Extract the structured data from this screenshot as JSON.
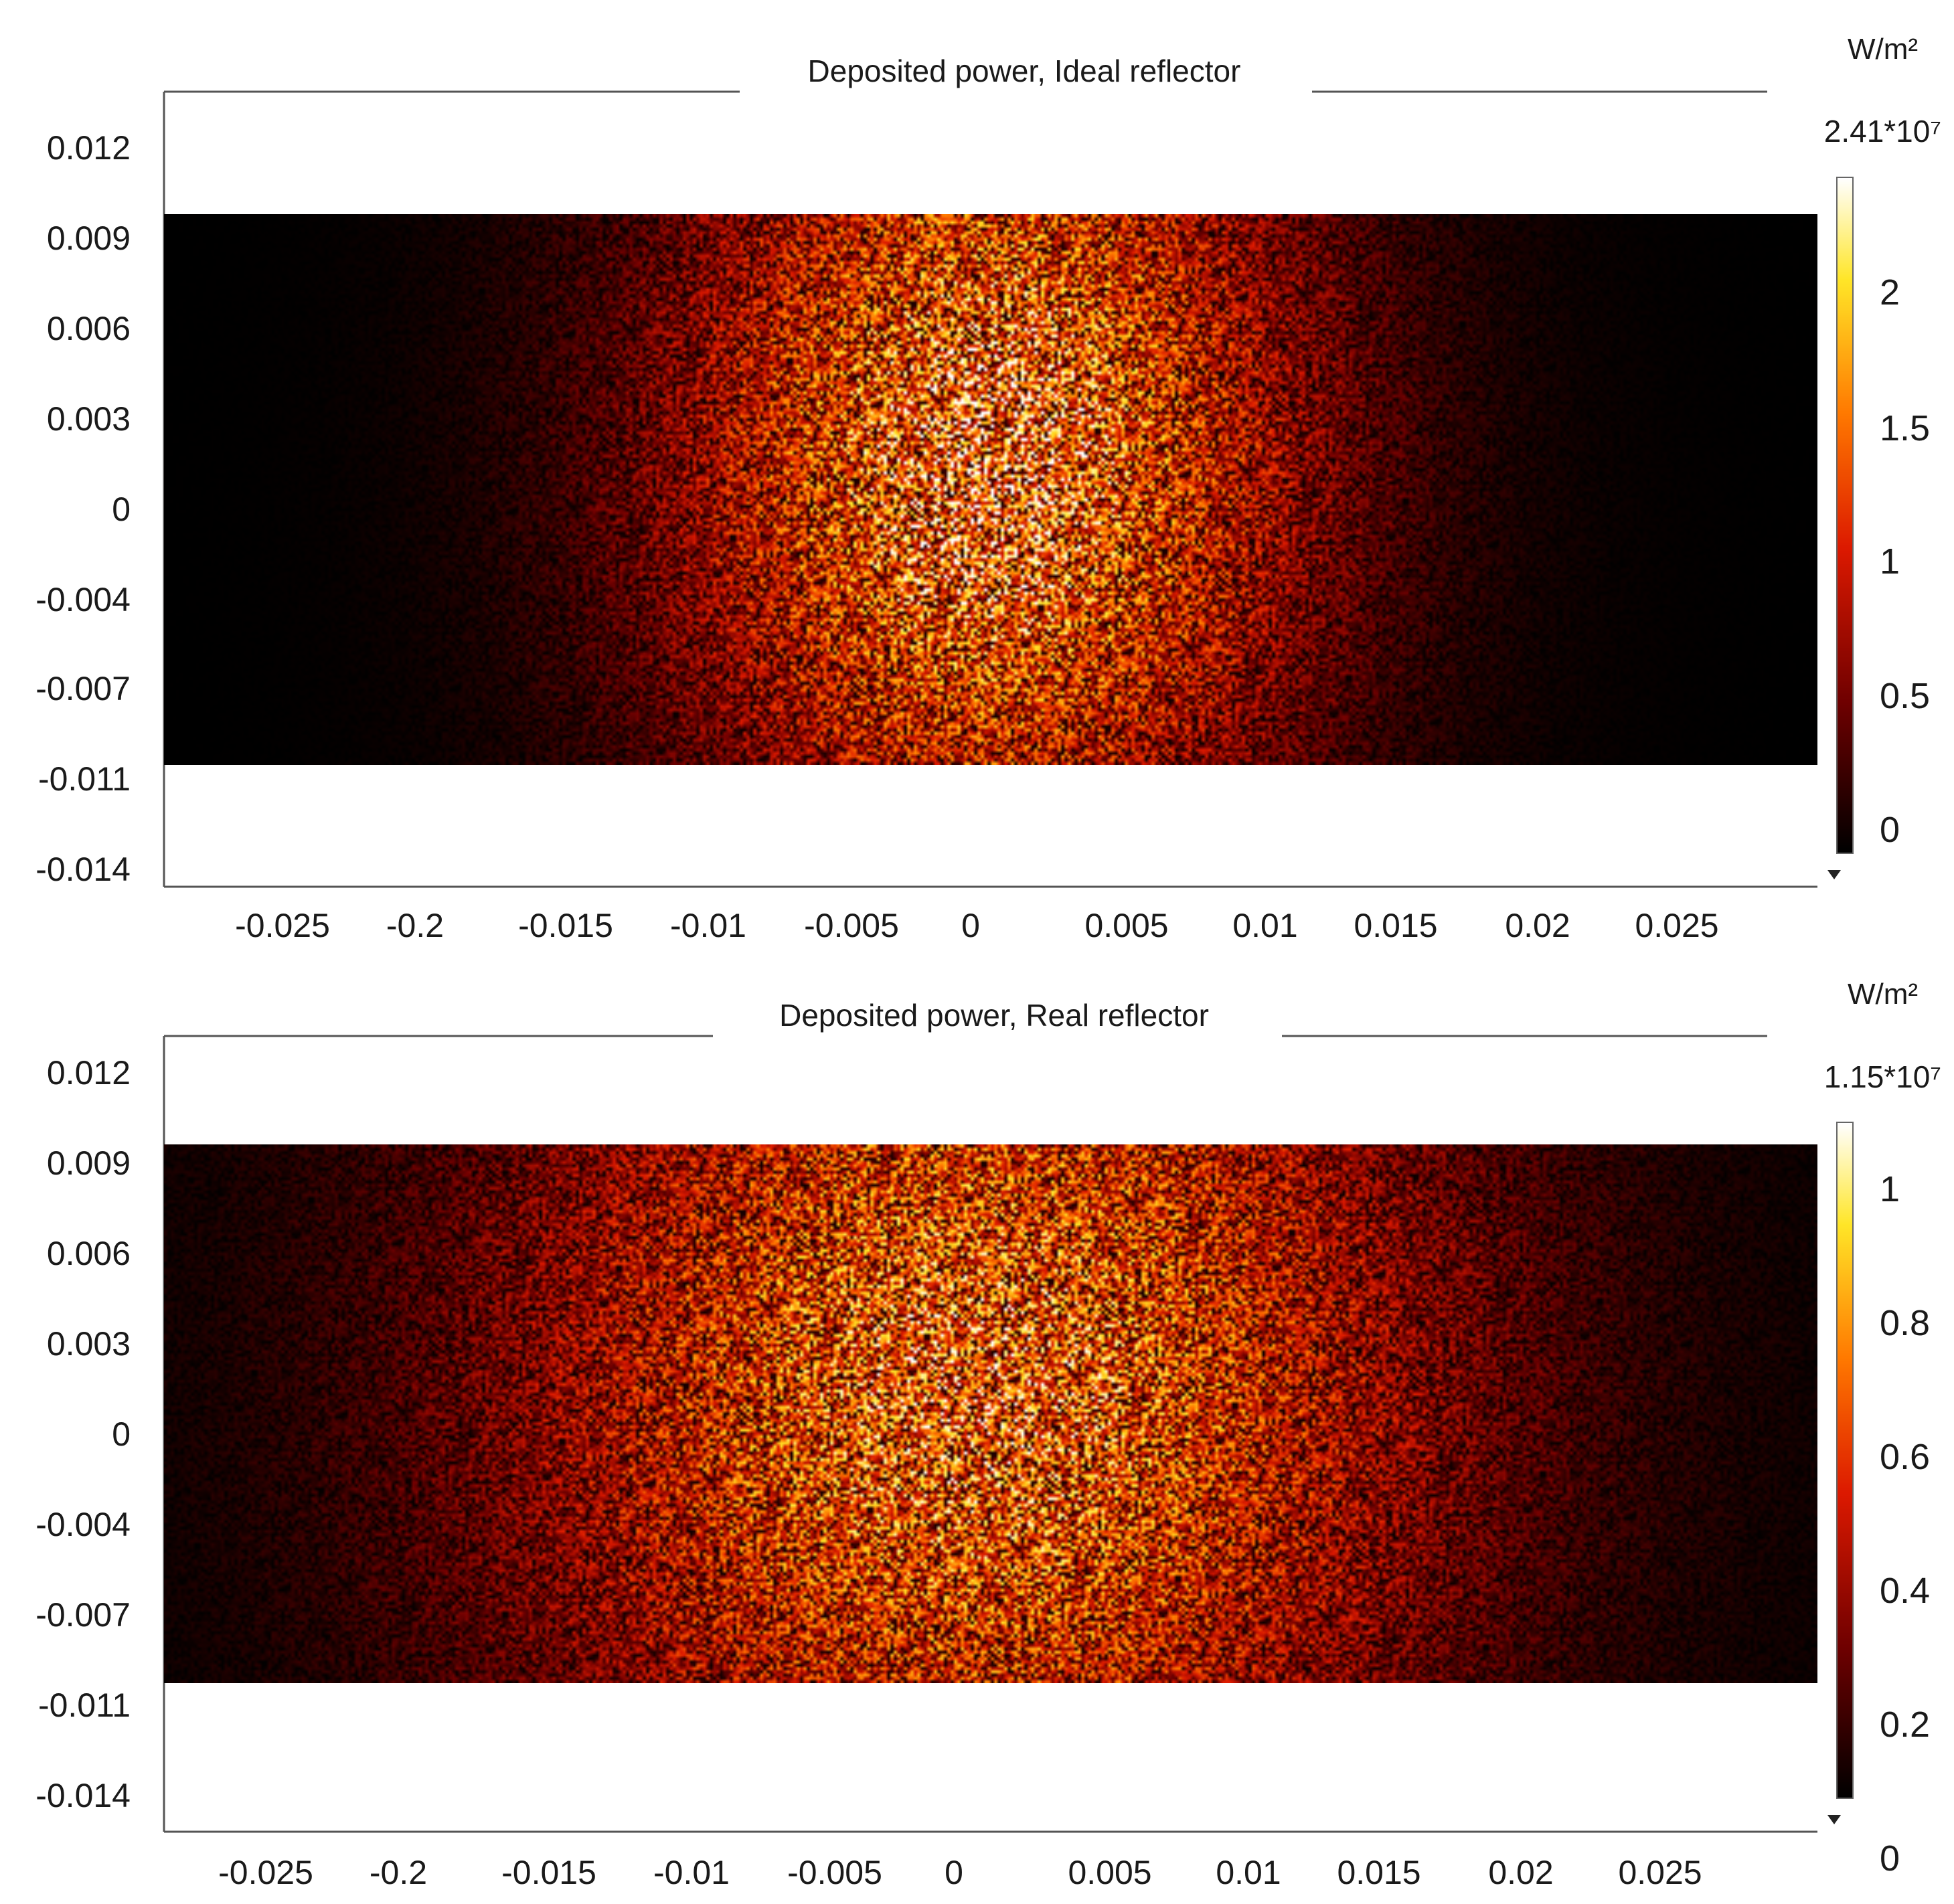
{
  "chart_data": [
    {
      "type": "heatmap",
      "title": "Deposited power, Ideal reflector",
      "colorbar": {
        "unit": "W/m²",
        "max_label": "2.41*10⁷",
        "ticks": [
          "2",
          "1.5",
          "1",
          "0.5",
          "0"
        ],
        "tick_values": [
          2,
          1.5,
          1,
          0.5,
          0
        ],
        "max_value": 2.41,
        "colormap": "black-red-yellow-white"
      },
      "y_tick_labels": [
        "0.012",
        "0.009",
        "0.006",
        "0.003",
        "0",
        "-0.004",
        "-0.007",
        "-0.011",
        "-0.014"
      ],
      "x_tick_labels": [
        "-0.025",
        "-0.2",
        "-0.015",
        "-0.01",
        "-0.005",
        "0",
        "0.005",
        "0.01",
        "0.015",
        "0.02",
        "0.025"
      ],
      "ylim": [
        -0.015,
        0.0135
      ],
      "xlim": [
        -0.03,
        0.03
      ],
      "domain_y_range": [
        -0.0105,
        0.0095
      ],
      "distribution": {
        "shape": "speckled elliptical spot",
        "center_x": 0.0,
        "center_y": 0.0005,
        "sigma_x": 0.0085,
        "sigma_y": 0.0115,
        "peak_fraction_of_max": 0.78
      }
    },
    {
      "type": "heatmap",
      "title": "Deposited power, Real reflector",
      "colorbar": {
        "unit": "W/m²",
        "max_label": "1.15*10⁷",
        "ticks": [
          "1",
          "0.8",
          "0.6",
          "0.4",
          "0.2",
          "0"
        ],
        "tick_values": [
          1,
          0.8,
          0.6,
          0.4,
          0.2,
          0
        ],
        "max_value": 1.15,
        "colormap": "black-red-yellow-white"
      },
      "y_tick_labels": [
        "0.012",
        "0.009",
        "0.006",
        "0.003",
        "0",
        "-0.004",
        "-0.007",
        "-0.011",
        "-0.014"
      ],
      "x_tick_labels": [
        "-0.025",
        "-0.2",
        "-0.015",
        "-0.01",
        "-0.005",
        "0",
        "0.005",
        "0.01",
        "0.015",
        "0.02",
        "0.025"
      ],
      "ylim": [
        -0.015,
        0.0135
      ],
      "xlim": [
        -0.03,
        0.03
      ],
      "domain_y_range": [
        -0.0105,
        0.0095
      ],
      "distribution": {
        "shape": "speckled elliptical spot",
        "center_x": -0.0005,
        "center_y": 0.0003,
        "sigma_x": 0.0125,
        "sigma_y": 0.0135,
        "peak_fraction_of_max": 0.72
      }
    }
  ]
}
